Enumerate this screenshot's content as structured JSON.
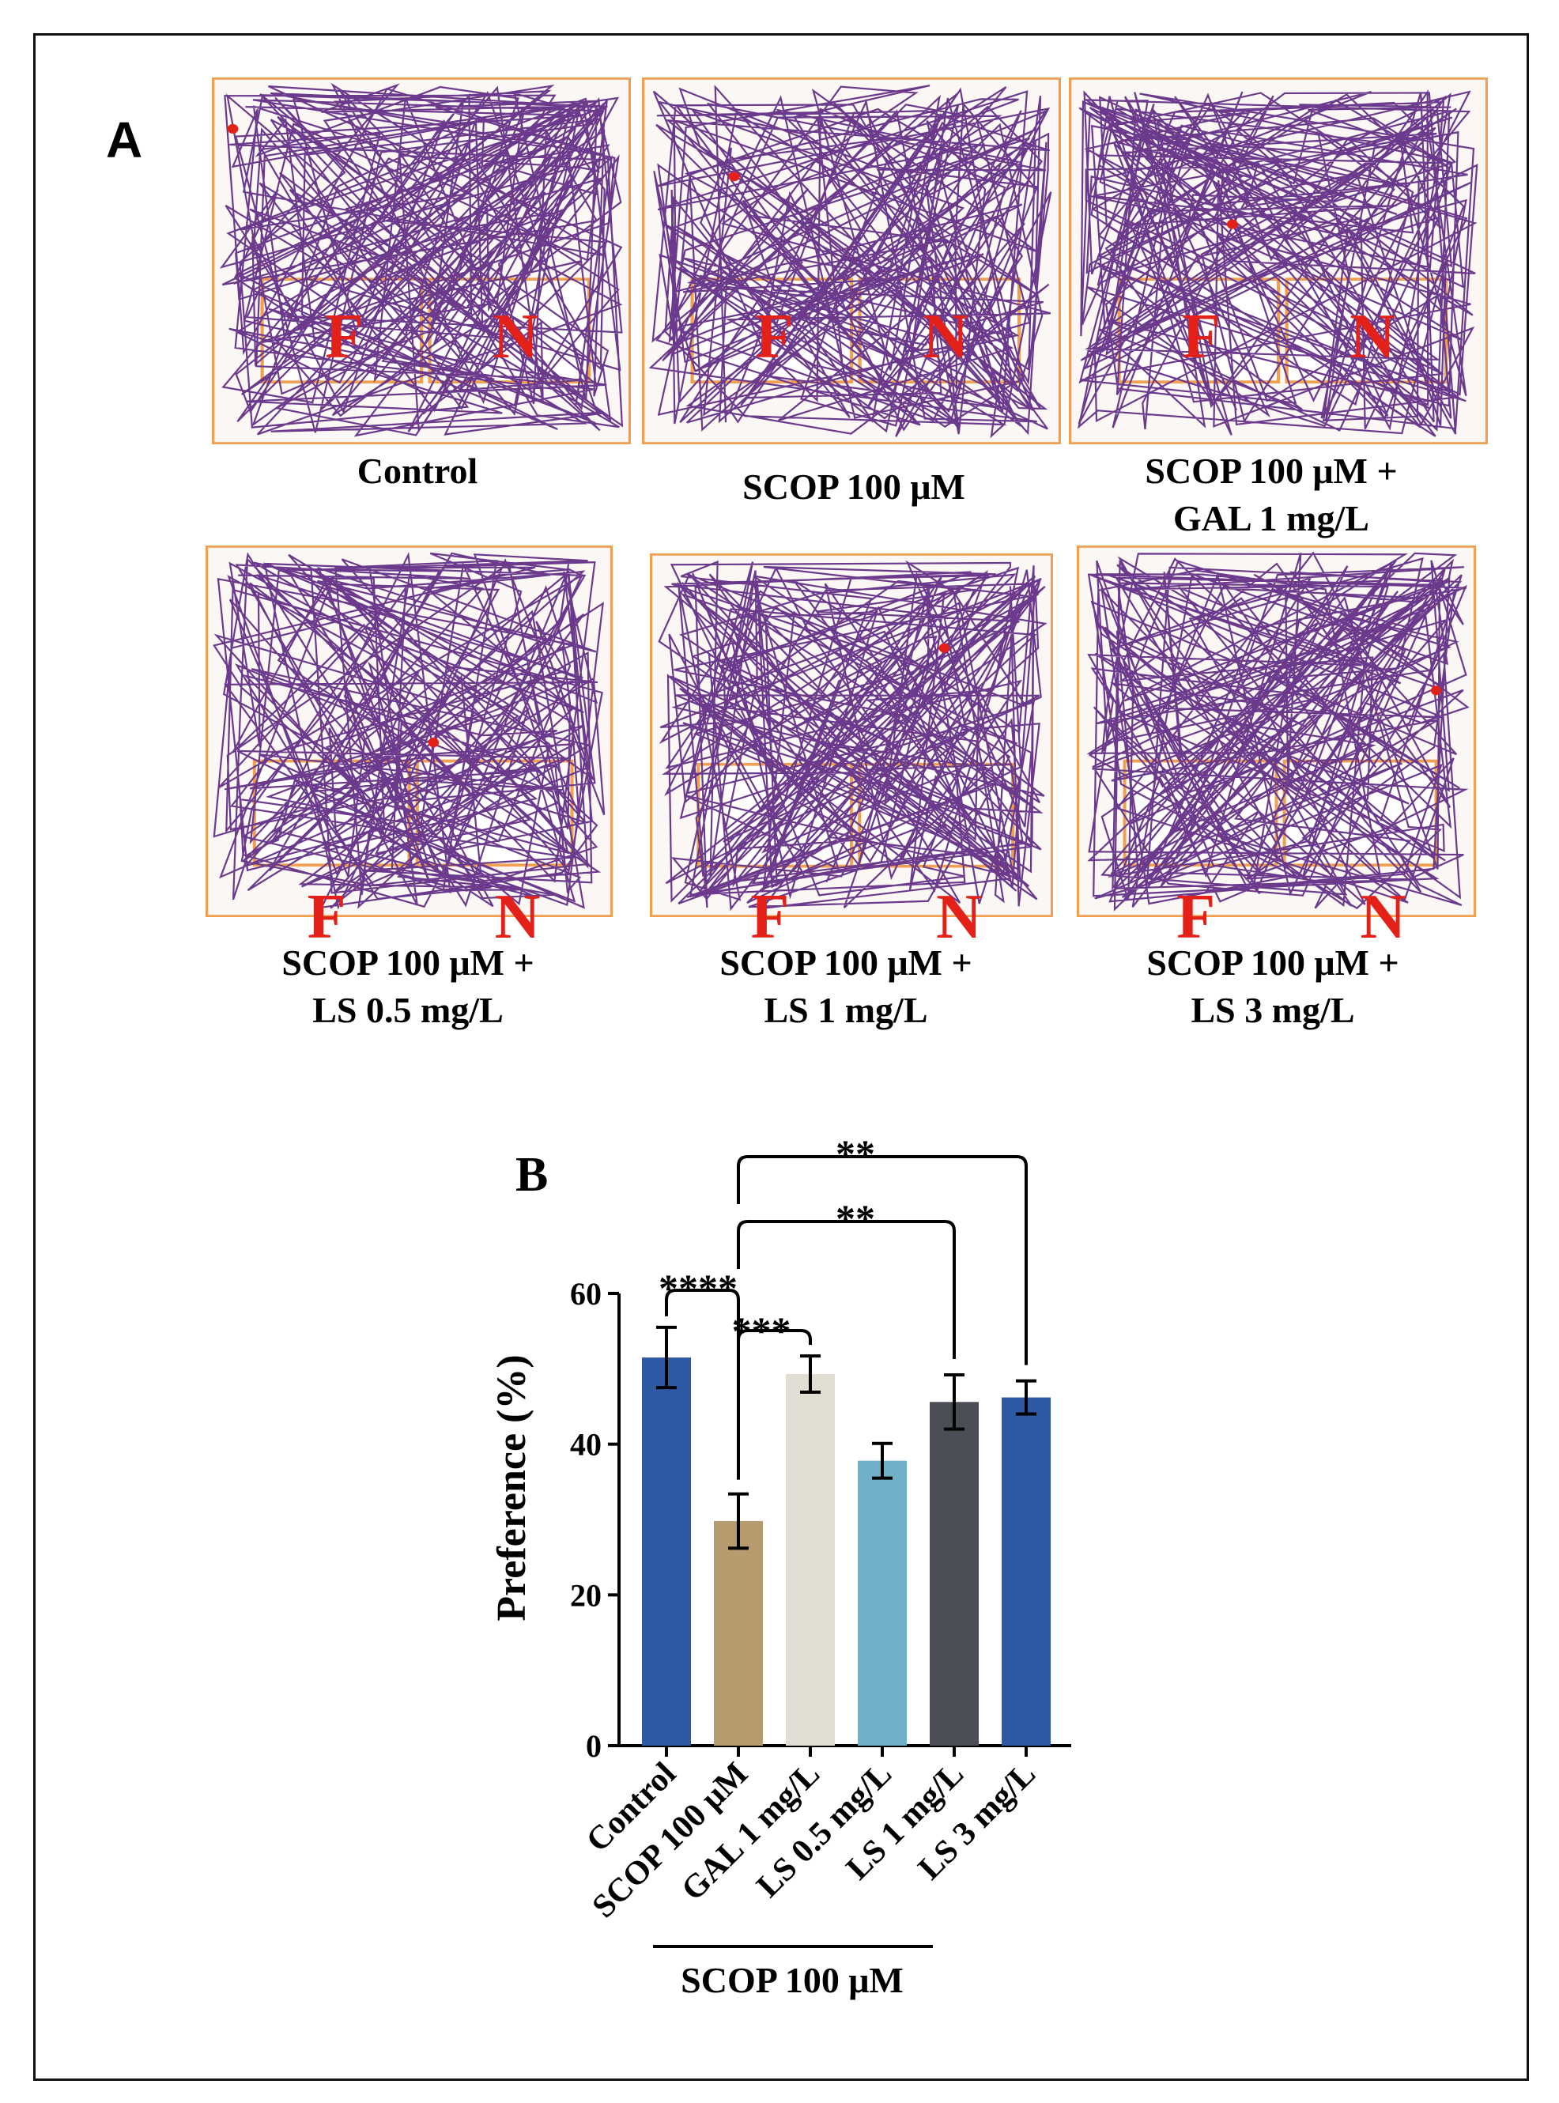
{
  "panel_a": {
    "letter": "A",
    "tracks": [
      {
        "caption_line1": "Control",
        "caption_line2": "",
        "zone_left": "F",
        "zone_right": "N",
        "style": "boxed"
      },
      {
        "caption_line1": "SCOP 100 μM",
        "caption_line2": "",
        "zone_left": "F",
        "zone_right": "N",
        "style": "boxed"
      },
      {
        "caption_line1": "SCOP 100 μM +",
        "caption_line2": "GAL 1 mg/L",
        "zone_left": "F",
        "zone_right": "N",
        "style": "boxed"
      },
      {
        "caption_line1": "SCOP 100 μM +",
        "caption_line2": "LS 0.5 mg/L",
        "zone_left": "F",
        "zone_right": "N",
        "style": "below"
      },
      {
        "caption_line1": "SCOP 100 μM +",
        "caption_line2": "LS 1 mg/L",
        "zone_left": "F",
        "zone_right": "N",
        "style": "below"
      },
      {
        "caption_line1": "SCOP 100 μM +",
        "caption_line2": "LS 3 mg/L",
        "zone_left": "F",
        "zone_right": "N",
        "style": "below"
      }
    ],
    "colors": {
      "track": "#6b3a8c",
      "arena_border": "#f0a050",
      "zone_letter": "#e32119"
    }
  },
  "panel_b": {
    "letter": "B",
    "group_bracket_label": "SCOP 100 μM"
  },
  "chart_data": {
    "type": "bar",
    "title": "",
    "xlabel": "",
    "ylabel": "Preference (%)",
    "ylim": [
      0,
      60
    ],
    "yticks": [
      0,
      20,
      40,
      60
    ],
    "categories": [
      "Control",
      "SCOP 100 μM",
      "GAL 1 mg/L",
      "LS 0.5 mg/L",
      "LS 1 mg/L",
      "LS 3 mg/L"
    ],
    "values": [
      51.5,
      29.8,
      49.3,
      37.8,
      45.6,
      46.2
    ],
    "errors": [
      4.0,
      3.6,
      2.4,
      2.3,
      3.6,
      2.2
    ],
    "colors": [
      "#2f58a3",
      "#b59b6e",
      "#e2ddd2",
      "#71afc9",
      "#4b4f55",
      "#2f58a3"
    ],
    "significance": [
      {
        "from": 0,
        "to": 1,
        "label": "****"
      },
      {
        "from": 1,
        "to": 2,
        "label": "***"
      },
      {
        "from": 1,
        "to": 4,
        "label": "**"
      },
      {
        "from": 1,
        "to": 5,
        "label": "**"
      }
    ]
  }
}
